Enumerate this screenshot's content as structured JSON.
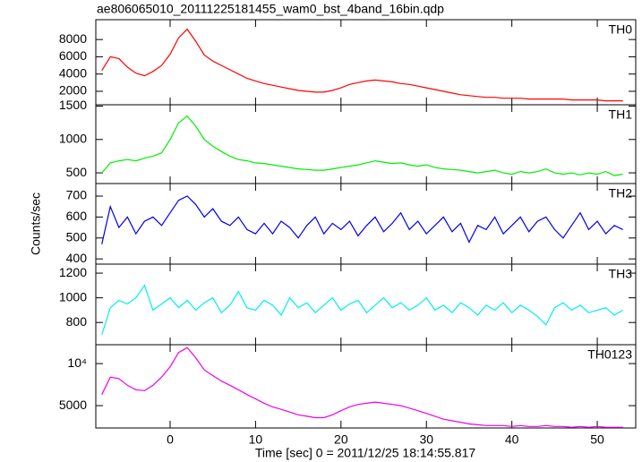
{
  "chart_data": [
    {
      "type": "line",
      "title": "ae806065010_20111225181455_wam0_bst_4band_16bin.qdp",
      "label": "TH0",
      "x": [
        -8,
        -7,
        -6,
        -5,
        -4,
        -3,
        -2,
        -1,
        0,
        1,
        2,
        3,
        4,
        5,
        6,
        7,
        8,
        9,
        10,
        11,
        12,
        13,
        14,
        15,
        16,
        17,
        18,
        19,
        20,
        21,
        22,
        23,
        24,
        25,
        26,
        27,
        28,
        29,
        30,
        31,
        32,
        33,
        34,
        35,
        36,
        37,
        38,
        39,
        40,
        41,
        42,
        43,
        44,
        45,
        46,
        47,
        48,
        49,
        50,
        51,
        52,
        53
      ],
      "series": [
        {
          "name": "TH0",
          "color": "#ff0000",
          "values": [
            4400,
            6000,
            5800,
            4800,
            4100,
            3800,
            4300,
            5000,
            6300,
            8200,
            9200,
            7800,
            6200,
            5500,
            5000,
            4500,
            4000,
            3500,
            3200,
            2900,
            2700,
            2500,
            2300,
            2100,
            2000,
            1900,
            1900,
            2100,
            2400,
            2800,
            3000,
            3200,
            3300,
            3200,
            3100,
            2900,
            2800,
            2600,
            2400,
            2200,
            2000,
            1800,
            1600,
            1500,
            1400,
            1300,
            1300,
            1200,
            1200,
            1200,
            1100,
            1100,
            1100,
            1100,
            1100,
            1000,
            1000,
            1000,
            1000,
            900,
            900,
            900
          ]
        }
      ],
      "xlim": [
        -8.7,
        54.5
      ],
      "ylim": [
        440,
        10300
      ],
      "yticks": [
        2000,
        4000,
        6000,
        8000
      ]
    },
    {
      "type": "line",
      "label": "TH1",
      "x": [
        -8,
        -7,
        -6,
        -5,
        -4,
        -3,
        -2,
        -1,
        0,
        1,
        2,
        3,
        4,
        5,
        6,
        7,
        8,
        9,
        10,
        11,
        12,
        13,
        14,
        15,
        16,
        17,
        18,
        19,
        20,
        21,
        22,
        23,
        24,
        25,
        26,
        27,
        28,
        29,
        30,
        31,
        32,
        33,
        34,
        35,
        36,
        37,
        38,
        39,
        40,
        41,
        42,
        43,
        44,
        45,
        46,
        47,
        48,
        49,
        50,
        51,
        52,
        53
      ],
      "series": [
        {
          "name": "TH1",
          "color": "#00ee00",
          "values": [
            500,
            650,
            680,
            700,
            680,
            720,
            750,
            800,
            1000,
            1250,
            1350,
            1200,
            1000,
            900,
            820,
            750,
            700,
            680,
            650,
            640,
            620,
            600,
            580,
            560,
            550,
            540,
            540,
            560,
            580,
            600,
            620,
            650,
            680,
            660,
            640,
            650,
            620,
            600,
            620,
            580,
            560,
            550,
            540,
            520,
            500,
            520,
            540,
            500,
            480,
            520,
            500,
            520,
            560,
            500,
            480,
            500,
            470,
            500,
            480,
            520,
            460,
            480
          ]
        }
      ],
      "xlim": [
        -8.7,
        54.5
      ],
      "ylim": [
        340,
        1520
      ],
      "yticks": [
        500,
        1000,
        1500
      ]
    },
    {
      "type": "line",
      "label": "TH2",
      "ylabel": "Counts/sec",
      "x": [
        -8,
        -7,
        -6,
        -5,
        -4,
        -3,
        -2,
        -1,
        0,
        1,
        2,
        3,
        4,
        5,
        6,
        7,
        8,
        9,
        10,
        11,
        12,
        13,
        14,
        15,
        16,
        17,
        18,
        19,
        20,
        21,
        22,
        23,
        24,
        25,
        26,
        27,
        28,
        29,
        30,
        31,
        32,
        33,
        34,
        35,
        36,
        37,
        38,
        39,
        40,
        41,
        42,
        43,
        44,
        45,
        46,
        47,
        48,
        49,
        50,
        51,
        52,
        53
      ],
      "series": [
        {
          "name": "TH2",
          "color": "#0000ee",
          "values": [
            470,
            650,
            550,
            600,
            520,
            580,
            600,
            560,
            620,
            680,
            700,
            660,
            600,
            640,
            580,
            560,
            600,
            540,
            520,
            570,
            520,
            580,
            550,
            500,
            560,
            600,
            520,
            570,
            540,
            580,
            510,
            560,
            600,
            530,
            570,
            620,
            540,
            580,
            520,
            560,
            600,
            530,
            570,
            480,
            560,
            540,
            600,
            520,
            560,
            600,
            530,
            580,
            600,
            540,
            500,
            560,
            620,
            540,
            580,
            520,
            560,
            540
          ]
        }
      ],
      "xlim": [
        -8.7,
        54.5
      ],
      "ylim": [
        375,
        760
      ],
      "yticks": [
        400,
        500,
        600,
        700
      ]
    },
    {
      "type": "line",
      "label": "TH3",
      "x": [
        -8,
        -7,
        -6,
        -5,
        -4,
        -3,
        -2,
        -1,
        0,
        1,
        2,
        3,
        4,
        5,
        6,
        7,
        8,
        9,
        10,
        11,
        12,
        13,
        14,
        15,
        16,
        17,
        18,
        19,
        20,
        21,
        22,
        23,
        24,
        25,
        26,
        27,
        28,
        29,
        30,
        31,
        32,
        33,
        34,
        35,
        36,
        37,
        38,
        39,
        40,
        41,
        42,
        43,
        44,
        45,
        46,
        47,
        48,
        49,
        50,
        51,
        52,
        53
      ],
      "series": [
        {
          "name": "TH3",
          "color": "#00eeee",
          "values": [
            700,
            920,
            980,
            950,
            1000,
            1100,
            900,
            950,
            1000,
            920,
            980,
            900,
            960,
            1000,
            880,
            940,
            1050,
            920,
            900,
            980,
            940,
            860,
            1000,
            920,
            960,
            880,
            940,
            1000,
            900,
            950,
            980,
            880,
            940,
            1000,
            920,
            960,
            900,
            940,
            1000,
            900,
            940,
            880,
            960,
            920,
            860,
            940,
            900,
            960,
            880,
            940,
            900,
            850,
            780,
            920,
            960,
            900,
            940,
            880,
            900,
            920,
            860,
            900
          ]
        }
      ],
      "xlim": [
        -8.7,
        54.5
      ],
      "ylim": [
        620,
        1273
      ],
      "yticks": [
        800,
        1000,
        1200
      ]
    },
    {
      "type": "line",
      "label": "TH0123",
      "xlabel": "Time [sec] 0 = 2011/12/25 18:14:55.817",
      "x": [
        -8,
        -7,
        -6,
        -5,
        -4,
        -3,
        -2,
        -1,
        0,
        1,
        2,
        3,
        4,
        5,
        6,
        7,
        8,
        9,
        10,
        11,
        12,
        13,
        14,
        15,
        16,
        17,
        18,
        19,
        20,
        21,
        22,
        23,
        24,
        25,
        26,
        27,
        28,
        29,
        30,
        31,
        32,
        33,
        34,
        35,
        36,
        37,
        38,
        39,
        40,
        41,
        42,
        43,
        44,
        45,
        46,
        47,
        48,
        49,
        50,
        51,
        52,
        53
      ],
      "series": [
        {
          "name": "TH0123",
          "color": "#ee00ee",
          "values": [
            6000,
            8000,
            7800,
            7000,
            6500,
            6400,
            7000,
            8000,
            9500,
            12000,
            13000,
            11000,
            9000,
            8200,
            7500,
            7000,
            6500,
            6000,
            5600,
            5200,
            4900,
            4700,
            4500,
            4300,
            4200,
            4100,
            4100,
            4300,
            4600,
            4900,
            5100,
            5200,
            5300,
            5200,
            5100,
            5000,
            4800,
            4600,
            4400,
            4200,
            4000,
            3900,
            3800,
            3700,
            3650,
            3600,
            3600,
            3600,
            3550,
            3600,
            3550,
            3550,
            3600,
            3550,
            3550,
            3500,
            3550,
            3500,
            3550,
            3500,
            3500,
            3500
          ]
        }
      ],
      "xlim": [
        -8.7,
        54.5
      ],
      "ylim": [
        3460,
        13650
      ],
      "log": true,
      "yticks": [
        5000,
        {
          "value": 10000,
          "label": "10⁴"
        }
      ],
      "xticks": [
        0,
        10,
        20,
        30,
        40,
        50
      ]
    }
  ]
}
